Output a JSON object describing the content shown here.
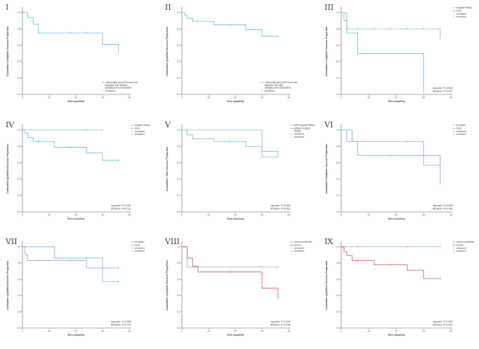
{
  "colors": {
    "blue": "#5bb3e0",
    "green": "#7bbf8f",
    "red": "#d9434e",
    "purple": "#a98bd6",
    "axis": "#555555"
  },
  "chart_data": [
    {
      "id": "I",
      "type": "line",
      "ylabel": "Cumulative Complete Success Proportion",
      "xlabel": "Time (months)",
      "xlim": [
        0,
        40
      ],
      "ylim": [
        0,
        1.05
      ],
      "xticks": [
        "0",
        "10",
        "20",
        "30",
        "40"
      ],
      "yticks": [
        "0.0",
        "0.2",
        "0.4",
        "0.6",
        "0.8",
        "1.0"
      ],
      "legend_pos": "bottom-right",
      "legend": [
        "≥18months and ≥20% from the baseline IOP without antiglaucoma medication",
        "censored"
      ],
      "stats": [],
      "series": [
        {
          "color": "#5bb3e0",
          "x": [
            0,
            2,
            4,
            6,
            30,
            36
          ],
          "y": [
            1.0,
            0.94,
            0.86,
            0.75,
            0.61,
            0.52
          ],
          "censor_x": [
            18,
            24,
            30,
            36
          ]
        }
      ]
    },
    {
      "id": "II",
      "type": "line",
      "ylabel": "Cumulative Qualified Success Proportion",
      "xlabel": "Time (months)",
      "xlim": [
        0,
        40
      ],
      "ylim": [
        0,
        1.05
      ],
      "xticks": [
        "0",
        "10",
        "20",
        "30",
        "40"
      ],
      "yticks": [
        "0.0",
        "0.2",
        "0.4",
        "0.6",
        "0.8",
        "1.0"
      ],
      "legend_pos": "bottom-right",
      "legend": [
        "≥18months and ≥20% from the baseline IOP with antiglaucoma medication",
        "censored"
      ],
      "stats": [],
      "series": [
        {
          "color": "#5bb3e0",
          "x": [
            0,
            1,
            2,
            4,
            12,
            24,
            30,
            36
          ],
          "y": [
            1.0,
            0.97,
            0.93,
            0.89,
            0.85,
            0.79,
            0.71,
            0.71
          ],
          "censor_x": [
            2,
            6,
            18,
            24,
            36
          ]
        }
      ]
    },
    {
      "id": "III",
      "type": "line",
      "ylabel": "Cumulative Complete Success Proportion",
      "xlabel": "Time (months)",
      "xlim": [
        0,
        40
      ],
      "ylim": [
        0,
        1.05
      ],
      "xticks": [
        "0",
        "10",
        "20",
        "30",
        "40"
      ],
      "yticks": [
        "0.0",
        "0.2",
        "0.4",
        "0.6",
        "0.8",
        "1.0"
      ],
      "legend_pos": "top-right",
      "legend": [
        "surgical history",
        "none",
        "censored",
        "censored"
      ],
      "stats": [
        "log-rank: P=0.016",
        "Breslow: P=0.077"
      ],
      "series": [
        {
          "color": "#7bbf8f",
          "x": [
            0,
            1,
            2,
            36
          ],
          "y": [
            1.0,
            0.9,
            0.8,
            0.68
          ],
          "censor_x": [
            6,
            12,
            18,
            24,
            30
          ]
        },
        {
          "color": "#5bb3e0",
          "x": [
            0,
            2,
            6,
            30
          ],
          "y": [
            1.0,
            0.75,
            0.5,
            0.02
          ],
          "censor_x": []
        }
      ]
    },
    {
      "id": "IV",
      "type": "line",
      "ylabel": "Cumulative Qualified Success Proportion",
      "xlabel": "Time (months)",
      "xlim": [
        0,
        40
      ],
      "ylim": [
        0,
        1.05
      ],
      "xticks": [
        "0",
        "10",
        "20",
        "30",
        "40"
      ],
      "yticks": [
        "0.0",
        "0.2",
        "0.4",
        "0.6",
        "0.8",
        "1.0"
      ],
      "legend_pos": "top-right",
      "legend": [
        "surgical history",
        "none",
        "censored",
        "censored"
      ],
      "stats": [
        "log-rank: P=0.281",
        "Breslow: P=0.212"
      ],
      "series": [
        {
          "color": "#7bbf8f",
          "x": [
            0,
            30
          ],
          "y": [
            1.0,
            1.0
          ],
          "censor_x": [
            24,
            30
          ]
        },
        {
          "color": "#5bb3e0",
          "x": [
            0,
            1,
            2,
            4,
            12,
            24,
            30,
            36
          ],
          "y": [
            1.0,
            0.96,
            0.91,
            0.86,
            0.79,
            0.72,
            0.63,
            0.63
          ],
          "censor_x": [
            6,
            18,
            36
          ]
        }
      ]
    },
    {
      "id": "V",
      "type": "line",
      "ylabel": "Cumulative Total Success Proportion",
      "xlabel": "Time (months)",
      "xlim": [
        0,
        40
      ],
      "ylim": [
        0,
        1.05
      ],
      "xticks": [
        "0",
        "10",
        "20",
        "30",
        "40"
      ],
      "yticks": [
        "0.0",
        "0.2",
        "0.4",
        "0.6",
        "0.8",
        "1.0"
      ],
      "legend_pos": "top-right",
      "legend": [
        "with surgical history",
        "without surgical history",
        "censored",
        "censored"
      ],
      "stats": [
        "log-rank: P=0.650",
        "Breslow: P=0.451"
      ],
      "series": [
        {
          "color": "#7bbf8f",
          "x": [
            0,
            30,
            36
          ],
          "y": [
            1.0,
            0.67,
            0.67
          ],
          "censor_x": [
            30
          ]
        },
        {
          "color": "#5bb3e0",
          "x": [
            0,
            2,
            4,
            12,
            24,
            30,
            36
          ],
          "y": [
            1.0,
            0.94,
            0.89,
            0.86,
            0.8,
            0.74,
            0.68
          ],
          "censor_x": [
            6,
            18,
            36
          ]
        }
      ]
    },
    {
      "id": "VI",
      "type": "line",
      "ylabel": "Cumulative Complete Success Proportion",
      "xlabel": "Time (months)",
      "xlim": [
        0,
        40
      ],
      "ylim": [
        0,
        1.05
      ],
      "xticks": [
        "0",
        "10",
        "20",
        "30",
        "40"
      ],
      "yticks": [
        "0.0",
        "0.2",
        "0.4",
        "0.6",
        "0.8",
        "1.0"
      ],
      "legend_pos": "top-right",
      "legend": [
        "iris spike",
        "none",
        "censored",
        "censored"
      ],
      "stats": [
        "log-rank: P=0.869",
        "Breslow: P=0.783"
      ],
      "series": [
        {
          "color": "#a98bd6",
          "x": [
            0,
            2,
            30,
            36
          ],
          "y": [
            1.0,
            0.86,
            0.69,
            0.34
          ],
          "censor_x": [
            24
          ]
        },
        {
          "color": "#5bb3e0",
          "x": [
            0,
            4,
            6,
            30,
            36
          ],
          "y": [
            1.0,
            0.86,
            0.69,
            0.57,
            0.57
          ],
          "censor_x": [
            18,
            36
          ]
        }
      ]
    },
    {
      "id": "VII",
      "type": "line",
      "ylabel": "Cumulative Qualified Success Proportion",
      "xlabel": "Time (months)",
      "xlim": [
        0,
        40
      ],
      "ylim": [
        0,
        1.05
      ],
      "xticks": [
        "0",
        "10",
        "20",
        "30",
        "40"
      ],
      "yticks": [
        "0.0",
        "0.2",
        "0.4",
        "0.6",
        "0.8",
        "1.0"
      ],
      "legend_pos": "top-right",
      "legend": [
        "iris spike",
        "none",
        "censored",
        "censored"
      ],
      "stats": [
        "log-rank: P=0.563",
        "Breslow: P=0.714"
      ],
      "series": [
        {
          "color": "#a98bd6",
          "x": [
            0,
            1,
            2,
            24,
            36
          ],
          "y": [
            1.0,
            0.9,
            0.83,
            0.74,
            0.74
          ],
          "censor_x": [
            6,
            18,
            36
          ]
        },
        {
          "color": "#5bb3e0",
          "x": [
            0,
            12,
            30,
            36
          ],
          "y": [
            1.0,
            0.86,
            0.57,
            0.57
          ],
          "censor_x": [
            24,
            36
          ]
        }
      ]
    },
    {
      "id": "VIII",
      "type": "line",
      "ylabel": "Cumulative Complete Success Proportion",
      "xlabel": "Time (months)",
      "xlim": [
        0,
        40
      ],
      "ylim": [
        0,
        1.05
      ],
      "xticks": [
        "0",
        "10",
        "20",
        "30",
        "40"
      ],
      "yticks": [
        "0.0",
        "0.2",
        "0.4",
        "0.6",
        "0.8",
        "1.0"
      ],
      "legend_pos": "top-right",
      "legend": [
        "mild to moderate",
        "severe",
        "censored",
        "censored"
      ],
      "stats": [
        "log-rank: P=0.406",
        "Breslow: P=0.645"
      ],
      "series": [
        {
          "color": "#7bbf8f",
          "x": [
            0,
            2,
            36
          ],
          "y": [
            1.0,
            0.75,
            0.75
          ],
          "censor_x": [
            30,
            36
          ]
        },
        {
          "color": "#d9434e",
          "x": [
            0,
            2,
            4,
            6,
            30,
            36
          ],
          "y": [
            1.0,
            0.86,
            0.76,
            0.69,
            0.49,
            0.37
          ],
          "censor_x": [
            18,
            36
          ]
        }
      ]
    },
    {
      "id": "IX",
      "type": "line",
      "ylabel": "Cumulative Qualified Success Proportion",
      "xlabel": "Time (months)",
      "xlim": [
        0,
        40
      ],
      "ylim": [
        0,
        1.05
      ],
      "xticks": [
        "0",
        "10",
        "20",
        "30",
        "40"
      ],
      "yticks": [
        "0.0",
        "0.2",
        "0.4",
        "0.6",
        "0.8",
        "1.0"
      ],
      "legend_pos": "top-right",
      "legend": [
        "mild to moderate",
        "severe",
        "censored",
        "censored"
      ],
      "stats": [
        "log-rank: P=0.202",
        "Breslow: P=0.223"
      ],
      "series": [
        {
          "color": "#7bbf8f",
          "x": [
            0,
            36
          ],
          "y": [
            1.0,
            1.0
          ],
          "censor_x": [
            6,
            24,
            36
          ]
        },
        {
          "color": "#d9434e",
          "x": [
            0,
            1,
            2,
            4,
            12,
            24,
            30,
            36
          ],
          "y": [
            1.0,
            0.94,
            0.89,
            0.83,
            0.78,
            0.71,
            0.61,
            0.61
          ],
          "censor_x": [
            6,
            18,
            36
          ]
        }
      ]
    }
  ]
}
